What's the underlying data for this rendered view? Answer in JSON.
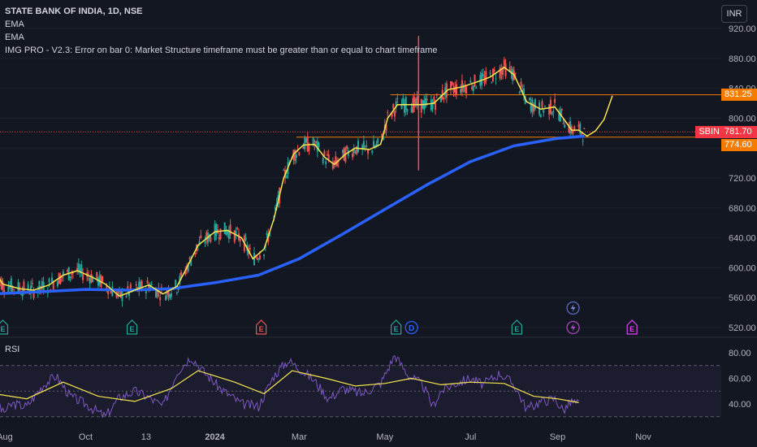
{
  "header": {
    "title": "STATE BANK OF INDIA, 1D, NSE",
    "indicator1": "EMA",
    "indicator2": "EMA",
    "indicator3": "IMG PRO - V2.3: Error on bar 0: Market Structure timeframe must be greater than or equal to chart timeframe"
  },
  "currency_button": "INR",
  "price_tags": {
    "level_upper": "831.25",
    "symbol": "SBIN",
    "last_price": "781.70",
    "level_lower": "774.60"
  },
  "rsi_label": "RSI",
  "colors": {
    "background": "#131722",
    "up_candle": "#26a69a",
    "down_candle": "#ef5350",
    "ema_fast": "#f7e64f",
    "ema_slow": "#2962ff",
    "level_line": "#f57c00",
    "rsi_line": "#7e57c2",
    "rsi_ma": "#f7e64f",
    "rsi_band": "#7e57c2"
  },
  "event_markers": [
    {
      "type": "E",
      "color": "#26a69a",
      "date": "2023-08-03"
    },
    {
      "type": "E",
      "color": "#26a69a",
      "date": "2023-11-03"
    },
    {
      "type": "E",
      "color": "#ef5350",
      "date": "2024-02-03"
    },
    {
      "type": "E",
      "color": "#26a69a",
      "date": "2024-05-09"
    },
    {
      "type": "D",
      "color": "#2962ff",
      "date": "2024-05-20"
    },
    {
      "type": "E",
      "color": "#26a69a",
      "date": "2024-08-03"
    },
    {
      "type": "split",
      "color": "#ab47bc",
      "date": "2024-09-12"
    },
    {
      "type": "E",
      "color": "#e040fb",
      "date": "2024-10-24"
    }
  ],
  "chart_data": [
    {
      "type": "candlestick",
      "symbol": "SBIN",
      "title": "STATE BANK OF INDIA, 1D, NSE",
      "x_tick_labels": [
        "Aug",
        "Oct",
        "13",
        "2024",
        "Mar",
        "May",
        "Jul",
        "Sep",
        "Nov"
      ],
      "y_tick_labels": [
        "520.00",
        "560.00",
        "600.00",
        "640.00",
        "680.00",
        "720.00",
        "760.00",
        "800.00",
        "840.00",
        "880.00",
        "920.00"
      ],
      "ylim": [
        508,
        935
      ],
      "price_levels": [
        831.25,
        774.6
      ],
      "last_price": 781.7,
      "series": [
        {
          "name": "EMA",
          "values": [
            [
              "2023-07-28",
              595
            ],
            [
              "2023-08-03",
              578
            ],
            [
              "2023-08-15",
              572
            ],
            [
              "2023-08-25",
              570
            ],
            [
              "2023-09-05",
              577
            ],
            [
              "2023-09-15",
              590
            ],
            [
              "2023-09-25",
              596
            ],
            [
              "2023-10-05",
              588
            ],
            [
              "2023-10-15",
              578
            ],
            [
              "2023-10-25",
              562
            ],
            [
              "2023-11-05",
              570
            ],
            [
              "2023-11-15",
              577
            ],
            [
              "2023-11-25",
              565
            ],
            [
              "2023-12-05",
              575
            ],
            [
              "2023-12-12",
              600
            ],
            [
              "2023-12-20",
              630
            ],
            [
              "2024-01-01",
              648
            ],
            [
              "2024-01-10",
              650
            ],
            [
              "2024-01-20",
              640
            ],
            [
              "2024-01-28",
              612
            ],
            [
              "2024-02-05",
              625
            ],
            [
              "2024-02-12",
              665
            ],
            [
              "2024-02-19",
              720
            ],
            [
              "2024-02-26",
              752
            ],
            [
              "2024-03-04",
              764
            ],
            [
              "2024-03-12",
              765
            ],
            [
              "2024-03-19",
              748
            ],
            [
              "2024-03-26",
              738
            ],
            [
              "2024-04-03",
              752
            ],
            [
              "2024-04-10",
              760
            ],
            [
              "2024-04-20",
              758
            ],
            [
              "2024-04-28",
              765
            ],
            [
              "2024-05-03",
              800
            ],
            [
              "2024-05-10",
              818
            ],
            [
              "2024-05-20",
              818
            ],
            [
              "2024-05-28",
              818
            ],
            [
              "2024-06-05",
              820
            ],
            [
              "2024-06-15",
              838
            ],
            [
              "2024-06-25",
              842
            ],
            [
              "2024-07-05",
              848
            ],
            [
              "2024-07-15",
              855
            ],
            [
              "2024-07-25",
              868
            ],
            [
              "2024-08-01",
              858
            ],
            [
              "2024-08-10",
              822
            ],
            [
              "2024-08-20",
              812
            ],
            [
              "2024-08-30",
              815
            ],
            [
              "2024-09-05",
              800
            ],
            [
              "2024-09-11",
              784
            ],
            [
              "2024-09-16",
              784
            ],
            [
              "2024-09-22",
              776
            ],
            [
              "2024-09-28",
              783
            ],
            [
              "2024-10-04",
              798
            ],
            [
              "2024-10-10",
              830
            ]
          ]
        },
        {
          "name": "EMA",
          "values": [
            [
              "2023-07-28",
              565
            ],
            [
              "2023-09-01",
              568
            ],
            [
              "2023-10-01",
              571
            ],
            [
              "2023-11-01",
              570
            ],
            [
              "2023-12-01",
              572
            ],
            [
              "2024-01-01",
              580
            ],
            [
              "2024-02-01",
              590
            ],
            [
              "2024-03-01",
              612
            ],
            [
              "2024-04-01",
              645
            ],
            [
              "2024-05-01",
              678
            ],
            [
              "2024-06-01",
              712
            ],
            [
              "2024-07-01",
              742
            ],
            [
              "2024-08-01",
              763
            ],
            [
              "2024-09-01",
              773
            ],
            [
              "2024-09-20",
              776
            ]
          ]
        }
      ]
    },
    {
      "type": "line",
      "name": "RSI",
      "y_tick_labels": [
        "40.00",
        "60.00",
        "80.00"
      ],
      "ylim": [
        27,
        83
      ],
      "bands": [
        30,
        50,
        70
      ],
      "series": [
        {
          "name": "RSI",
          "values": [
            [
              "2023-07-28",
              50
            ],
            [
              "2023-08-03",
              33
            ],
            [
              "2023-08-10",
              40
            ],
            [
              "2023-08-20",
              38
            ],
            [
              "2023-09-01",
              55
            ],
            [
              "2023-09-10",
              62
            ],
            [
              "2023-09-20",
              46
            ],
            [
              "2023-10-01",
              40
            ],
            [
              "2023-10-15",
              30
            ],
            [
              "2023-10-25",
              45
            ],
            [
              "2023-11-05",
              50
            ],
            [
              "2023-11-15",
              45
            ],
            [
              "2023-11-25",
              38
            ],
            [
              "2023-12-05",
              65
            ],
            [
              "2023-12-15",
              77
            ],
            [
              "2023-12-25",
              64
            ],
            [
              "2024-01-05",
              52
            ],
            [
              "2024-01-20",
              40
            ],
            [
              "2024-02-01",
              38
            ],
            [
              "2024-02-12",
              62
            ],
            [
              "2024-02-22",
              74
            ],
            [
              "2024-03-01",
              68
            ],
            [
              "2024-03-12",
              58
            ],
            [
              "2024-03-22",
              44
            ],
            [
              "2024-04-01",
              52
            ],
            [
              "2024-04-15",
              48
            ],
            [
              "2024-04-28",
              56
            ],
            [
              "2024-05-08",
              78
            ],
            [
              "2024-05-18",
              62
            ],
            [
              "2024-05-28",
              55
            ],
            [
              "2024-06-04",
              38
            ],
            [
              "2024-06-10",
              50
            ],
            [
              "2024-06-20",
              56
            ],
            [
              "2024-07-01",
              60
            ],
            [
              "2024-07-10",
              55
            ],
            [
              "2024-07-22",
              64
            ],
            [
              "2024-08-01",
              55
            ],
            [
              "2024-08-10",
              36
            ],
            [
              "2024-08-20",
              42
            ],
            [
              "2024-08-30",
              44
            ],
            [
              "2024-09-05",
              35
            ],
            [
              "2024-09-11",
              42
            ],
            [
              "2024-09-16",
              40
            ]
          ]
        },
        {
          "name": "RSI-based MA",
          "values": [
            [
              "2023-07-28",
              48
            ],
            [
              "2023-08-20",
              44
            ],
            [
              "2023-09-15",
              57
            ],
            [
              "2023-10-10",
              46
            ],
            [
              "2023-11-05",
              42
            ],
            [
              "2023-12-01",
              52
            ],
            [
              "2023-12-20",
              66
            ],
            [
              "2024-01-15",
              57
            ],
            [
              "2024-02-05",
              48
            ],
            [
              "2024-02-25",
              66
            ],
            [
              "2024-03-20",
              60
            ],
            [
              "2024-04-10",
              54
            ],
            [
              "2024-05-01",
              56
            ],
            [
              "2024-05-20",
              60
            ],
            [
              "2024-06-10",
              55
            ],
            [
              "2024-07-01",
              57
            ],
            [
              "2024-07-25",
              56
            ],
            [
              "2024-08-15",
              46
            ],
            [
              "2024-09-01",
              44
            ],
            [
              "2024-09-16",
              41
            ]
          ]
        }
      ]
    }
  ]
}
